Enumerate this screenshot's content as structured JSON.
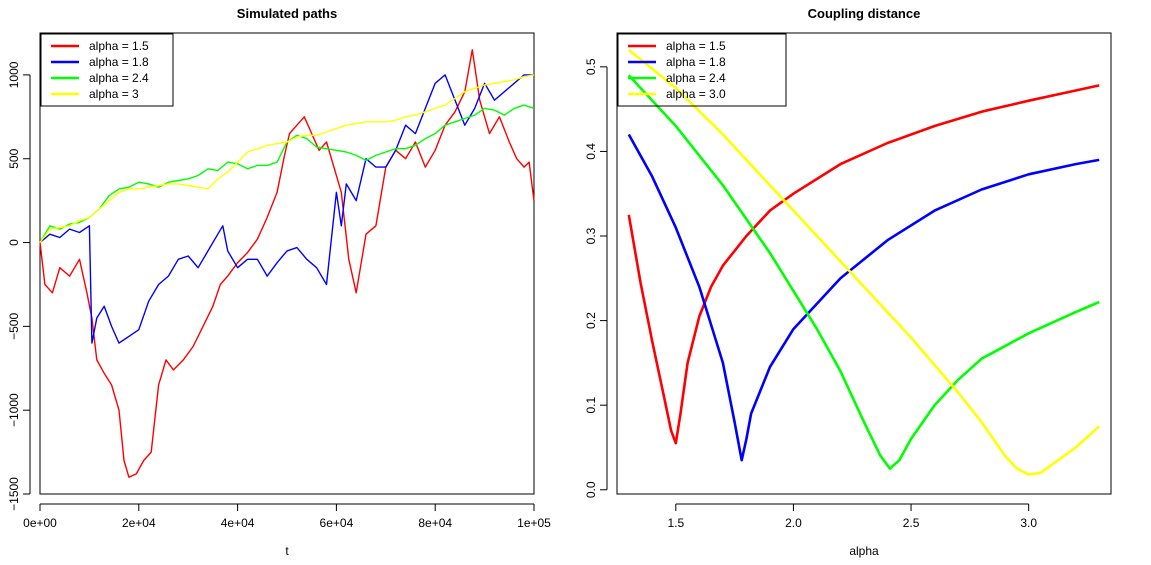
{
  "chart_data": [
    {
      "type": "line",
      "title": "Simulated paths",
      "xlabel": "t",
      "ylabel": "",
      "xlim": [
        0,
        100000
      ],
      "ylim": [
        -1500,
        1250
      ],
      "xticks": [
        0,
        20000,
        40000,
        60000,
        80000,
        100000
      ],
      "xtick_labels": [
        "0e+00",
        "2e+04",
        "4e+04",
        "6e+04",
        "8e+04",
        "1e+05"
      ],
      "yticks": [
        -1500,
        -1000,
        -500,
        0,
        500,
        1000
      ],
      "ytick_labels": [
        "−1500",
        "−1000",
        "−500",
        "0",
        "500",
        "1000"
      ],
      "grid": false,
      "legend": "top-left",
      "series": [
        {
          "name": "alpha =  1.5",
          "color": "#ff0000",
          "x": [
            0,
            1000,
            2500,
            4000,
            6000,
            8000,
            9500,
            10500,
            11500,
            13000,
            14500,
            16000,
            17000,
            18000,
            19500,
            21000,
            22500,
            24000,
            25500,
            27000,
            29000,
            31000,
            33000,
            35000,
            36500,
            38000,
            40000,
            42000,
            44000,
            46000,
            48000,
            49500,
            50500,
            52000,
            53500,
            55000,
            56500,
            58000,
            59500,
            61000,
            62500,
            64000,
            66000,
            68000,
            70000,
            72000,
            74000,
            76000,
            78000,
            80000,
            82000,
            84000,
            86000,
            87500,
            89000,
            91000,
            93000,
            95000,
            96500,
            98000,
            99000,
            100000
          ],
          "values": [
            0,
            -250,
            -300,
            -150,
            -200,
            -100,
            -300,
            -450,
            -700,
            -780,
            -850,
            -1000,
            -1300,
            -1400,
            -1380,
            -1300,
            -1250,
            -850,
            -700,
            -760,
            -700,
            -620,
            -500,
            -380,
            -250,
            -200,
            -120,
            -60,
            20,
            150,
            300,
            520,
            650,
            700,
            750,
            650,
            550,
            600,
            450,
            300,
            -100,
            -300,
            50,
            100,
            450,
            550,
            500,
            600,
            450,
            550,
            700,
            780,
            900,
            1150,
            850,
            650,
            750,
            600,
            500,
            450,
            480,
            250
          ]
        },
        {
          "name": "alpha =  1.8",
          "color": "#0000ff",
          "x": [
            0,
            2000,
            4000,
            6000,
            8000,
            10000,
            10500,
            11500,
            13000,
            14500,
            16000,
            18000,
            20000,
            22000,
            24000,
            26000,
            28000,
            30000,
            32000,
            34000,
            36000,
            37000,
            38000,
            40000,
            42000,
            44000,
            46000,
            48000,
            50000,
            52000,
            54000,
            56000,
            58000,
            60000,
            61000,
            62000,
            64000,
            66000,
            68000,
            70000,
            72000,
            74000,
            76000,
            78000,
            80000,
            82000,
            84000,
            86000,
            88000,
            90000,
            92000,
            94000,
            96000,
            98000,
            100000
          ],
          "values": [
            0,
            50,
            30,
            80,
            60,
            100,
            -600,
            -450,
            -380,
            -500,
            -600,
            -560,
            -520,
            -350,
            -250,
            -200,
            -100,
            -80,
            -150,
            -50,
            50,
            100,
            -50,
            -150,
            -100,
            -100,
            -200,
            -120,
            -50,
            -30,
            -100,
            -150,
            -250,
            300,
            100,
            350,
            250,
            500,
            450,
            450,
            550,
            700,
            650,
            800,
            950,
            1000,
            850,
            700,
            800,
            950,
            850,
            900,
            950,
            1000,
            1000
          ]
        },
        {
          "name": "alpha = 2.4",
          "color": "#00ff00",
          "x": [
            0,
            2000,
            4000,
            6000,
            8000,
            10000,
            12000,
            14000,
            16000,
            18000,
            20000,
            22000,
            24000,
            26000,
            28000,
            30000,
            32000,
            34000,
            36000,
            38000,
            40000,
            42000,
            44000,
            46000,
            48000,
            50000,
            52000,
            54000,
            56000,
            58000,
            60000,
            62000,
            64000,
            66000,
            68000,
            70000,
            72000,
            74000,
            76000,
            78000,
            80000,
            82000,
            84000,
            86000,
            88000,
            90000,
            92000,
            94000,
            96000,
            98000,
            100000
          ],
          "values": [
            0,
            100,
            80,
            110,
            120,
            150,
            200,
            280,
            320,
            330,
            360,
            350,
            330,
            360,
            370,
            380,
            400,
            440,
            430,
            480,
            470,
            440,
            460,
            460,
            480,
            600,
            640,
            620,
            570,
            560,
            550,
            540,
            520,
            490,
            520,
            540,
            560,
            560,
            580,
            620,
            650,
            700,
            720,
            740,
            760,
            800,
            790,
            760,
            800,
            820,
            800
          ]
        },
        {
          "name": "alpha =  3",
          "color": "#ffff00",
          "x": [
            0,
            2000,
            4000,
            6000,
            8000,
            10000,
            12000,
            14000,
            16000,
            18000,
            20000,
            22000,
            24000,
            26000,
            28000,
            30000,
            32000,
            34000,
            36000,
            38000,
            40000,
            42000,
            44000,
            46000,
            48000,
            50000,
            52000,
            54000,
            56000,
            58000,
            60000,
            62000,
            64000,
            66000,
            68000,
            70000,
            72000,
            74000,
            76000,
            78000,
            80000,
            82000,
            84000,
            86000,
            88000,
            90000,
            92000,
            94000,
            96000,
            98000,
            100000
          ],
          "values": [
            0,
            80,
            90,
            100,
            130,
            150,
            200,
            250,
            300,
            320,
            320,
            330,
            340,
            350,
            350,
            340,
            330,
            320,
            380,
            420,
            480,
            540,
            560,
            580,
            590,
            600,
            630,
            640,
            640,
            660,
            680,
            700,
            710,
            720,
            720,
            720,
            730,
            750,
            760,
            780,
            800,
            820,
            860,
            900,
            920,
            940,
            950,
            960,
            970,
            990,
            1000
          ]
        }
      ]
    },
    {
      "type": "line",
      "title": "Coupling distance",
      "xlabel": "alpha",
      "ylabel": "",
      "xlim": [
        1.25,
        3.35
      ],
      "ylim": [
        -0.005,
        0.54
      ],
      "xticks": [
        1.5,
        2.0,
        2.5,
        3.0
      ],
      "xtick_labels": [
        "1.5",
        "2.0",
        "2.5",
        "3.0"
      ],
      "yticks": [
        0.0,
        0.1,
        0.2,
        0.3,
        0.4,
        0.5
      ],
      "ytick_labels": [
        "0.0",
        "0.1",
        "0.2",
        "0.3",
        "0.4",
        "0.5"
      ],
      "grid": false,
      "legend": "top-left",
      "series": [
        {
          "name": "alpha =  1.5",
          "color": "#ff0000",
          "x": [
            1.3,
            1.35,
            1.4,
            1.45,
            1.48,
            1.5,
            1.52,
            1.55,
            1.6,
            1.65,
            1.7,
            1.8,
            1.9,
            2.0,
            2.2,
            2.4,
            2.6,
            2.8,
            3.0,
            3.2,
            3.3
          ],
          "values": [
            0.325,
            0.245,
            0.175,
            0.11,
            0.07,
            0.055,
            0.09,
            0.15,
            0.205,
            0.24,
            0.265,
            0.3,
            0.33,
            0.35,
            0.385,
            0.41,
            0.43,
            0.447,
            0.46,
            0.472,
            0.478
          ]
        },
        {
          "name": "alpha =  1.8",
          "color": "#0000ff",
          "x": [
            1.3,
            1.4,
            1.5,
            1.6,
            1.7,
            1.75,
            1.78,
            1.8,
            1.82,
            1.9,
            2.0,
            2.2,
            2.4,
            2.6,
            2.8,
            3.0,
            3.2,
            3.3
          ],
          "values": [
            0.42,
            0.37,
            0.31,
            0.24,
            0.15,
            0.08,
            0.035,
            0.06,
            0.09,
            0.145,
            0.19,
            0.25,
            0.295,
            0.33,
            0.355,
            0.373,
            0.385,
            0.39
          ]
        },
        {
          "name": "alpha = 2.4",
          "color": "#00ff00",
          "x": [
            1.3,
            1.5,
            1.7,
            1.9,
            2.1,
            2.2,
            2.3,
            2.37,
            2.41,
            2.45,
            2.5,
            2.6,
            2.7,
            2.8,
            3.0,
            3.2,
            3.3
          ],
          "values": [
            0.49,
            0.43,
            0.36,
            0.28,
            0.19,
            0.14,
            0.08,
            0.04,
            0.025,
            0.035,
            0.06,
            0.1,
            0.13,
            0.155,
            0.185,
            0.21,
            0.222
          ]
        },
        {
          "name": "alpha =  3.0",
          "color": "#ffff00",
          "x": [
            1.3,
            1.5,
            1.7,
            1.9,
            2.1,
            2.3,
            2.5,
            2.7,
            2.8,
            2.9,
            2.95,
            3.0,
            3.05,
            3.1,
            3.2,
            3.3
          ],
          "values": [
            0.52,
            0.475,
            0.42,
            0.36,
            0.3,
            0.24,
            0.18,
            0.115,
            0.08,
            0.04,
            0.025,
            0.018,
            0.02,
            0.03,
            0.05,
            0.075
          ]
        }
      ]
    }
  ]
}
